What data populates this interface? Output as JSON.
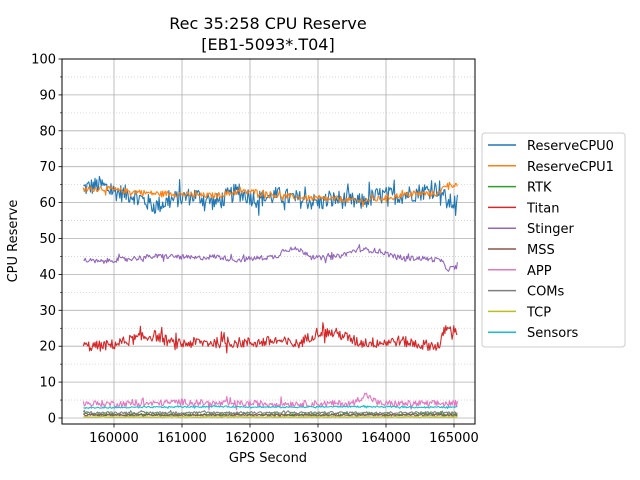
{
  "chart_data": {
    "type": "line",
    "title": "Rec 35:258 CPU Reserve",
    "subtitle": "[EB1-5093*.T04]",
    "xlabel": "GPS Second",
    "ylabel": "CPU Reserve",
    "xlim": [
      159450,
      165300
    ],
    "ylim": [
      0,
      100
    ],
    "xticks": [
      160000,
      161000,
      162000,
      163000,
      164000,
      165000
    ],
    "xtick_labels": [
      "160000",
      "161000",
      "162000",
      "163000",
      "164000",
      "165000"
    ],
    "yticks": [
      0,
      10,
      20,
      30,
      40,
      50,
      60,
      70,
      80,
      90,
      100
    ],
    "ytick_labels": [
      "0",
      "10",
      "20",
      "30",
      "40",
      "50",
      "60",
      "70",
      "80",
      "90",
      "100"
    ],
    "y_minor_step": 5,
    "grid": true,
    "legend_position": "outside-right",
    "x_range_data": [
      159550,
      165050
    ],
    "series": [
      {
        "name": "ReserveCPU0",
        "color": "#1f77b4",
        "x": [
          159550,
          159800,
          160000,
          160300,
          160600,
          160900,
          161200,
          161500,
          161800,
          162100,
          162400,
          162700,
          163000,
          163300,
          163600,
          163900,
          164200,
          164500,
          164800,
          164900,
          165050
        ],
        "y": [
          64,
          65,
          63,
          62,
          59,
          61,
          62,
          60,
          63,
          61,
          62,
          61,
          60,
          61,
          60,
          62,
          62,
          63,
          64,
          60,
          60
        ],
        "noise": 2.5
      },
      {
        "name": "ReserveCPU1",
        "color": "#ff7f0e",
        "x": [
          159550,
          159800,
          160000,
          160300,
          160600,
          160900,
          161200,
          161500,
          161800,
          162100,
          162400,
          162700,
          163000,
          163300,
          163600,
          163900,
          164200,
          164500,
          164800,
          164850,
          165050
        ],
        "y": [
          63.5,
          64,
          63.5,
          63,
          62.5,
          62.5,
          62,
          62,
          63,
          63,
          62,
          61.5,
          61,
          61,
          60.5,
          61,
          62,
          62.5,
          62.5,
          65,
          65
        ],
        "noise": 0.8
      },
      {
        "name": "RTK",
        "color": "#2ca02c",
        "x": [
          159550,
          165050
        ],
        "y": [
          1,
          1
        ],
        "noise": 0.3
      },
      {
        "name": "Titan",
        "color": "#d62728",
        "x": [
          159550,
          159800,
          160000,
          160300,
          160600,
          160900,
          161200,
          161500,
          161800,
          162100,
          162400,
          162700,
          163000,
          163300,
          163600,
          163900,
          164200,
          164500,
          164800,
          164850,
          165050
        ],
        "y": [
          20,
          20,
          20.5,
          22,
          23,
          20.5,
          21,
          21,
          21,
          21,
          21.5,
          20.5,
          24,
          23.5,
          21,
          21,
          21.5,
          20.5,
          20,
          24.5,
          24.5
        ],
        "noise": 1.5
      },
      {
        "name": "Stinger",
        "color": "#9467bd",
        "x": [
          159550,
          159800,
          160000,
          160300,
          160600,
          160900,
          161200,
          161500,
          161800,
          162100,
          162400,
          162500,
          162700,
          163000,
          163300,
          163600,
          163900,
          164200,
          164500,
          164800,
          164900,
          165050
        ],
        "y": [
          44,
          43.5,
          44,
          44.5,
          45,
          45,
          44.5,
          45,
          44,
          44.5,
          45,
          47,
          47,
          44.5,
          45,
          47,
          46.5,
          44.5,
          44.5,
          44,
          41.5,
          42
        ],
        "noise": 0.7
      },
      {
        "name": "MSS",
        "color": "#8c564b",
        "x": [
          159550,
          165050
        ],
        "y": [
          0.8,
          0.8
        ],
        "noise": 0.2
      },
      {
        "name": "APP",
        "color": "#e377c2",
        "x": [
          159550,
          160000,
          160500,
          161000,
          161500,
          162000,
          162500,
          163000,
          163500,
          163700,
          163900,
          164500,
          165050
        ],
        "y": [
          4,
          4,
          4,
          4.5,
          4,
          4,
          4,
          4,
          4,
          6.5,
          4,
          4,
          4
        ],
        "noise": 0.9
      },
      {
        "name": "COMs",
        "color": "#7f7f7f",
        "x": [
          159550,
          165050
        ],
        "y": [
          1.5,
          1.5
        ],
        "noise": 0.3
      },
      {
        "name": "TCP",
        "color": "#bcbd22",
        "x": [
          159550,
          165050
        ],
        "y": [
          0.3,
          0.3
        ],
        "noise": 0.1
      },
      {
        "name": "Sensors",
        "color": "#17becf",
        "x": [
          159550,
          160500,
          161500,
          162500,
          163500,
          164500,
          165050
        ],
        "y": [
          2.8,
          3,
          3.2,
          3,
          3.2,
          3,
          3
        ],
        "noise": 0.2
      }
    ]
  }
}
